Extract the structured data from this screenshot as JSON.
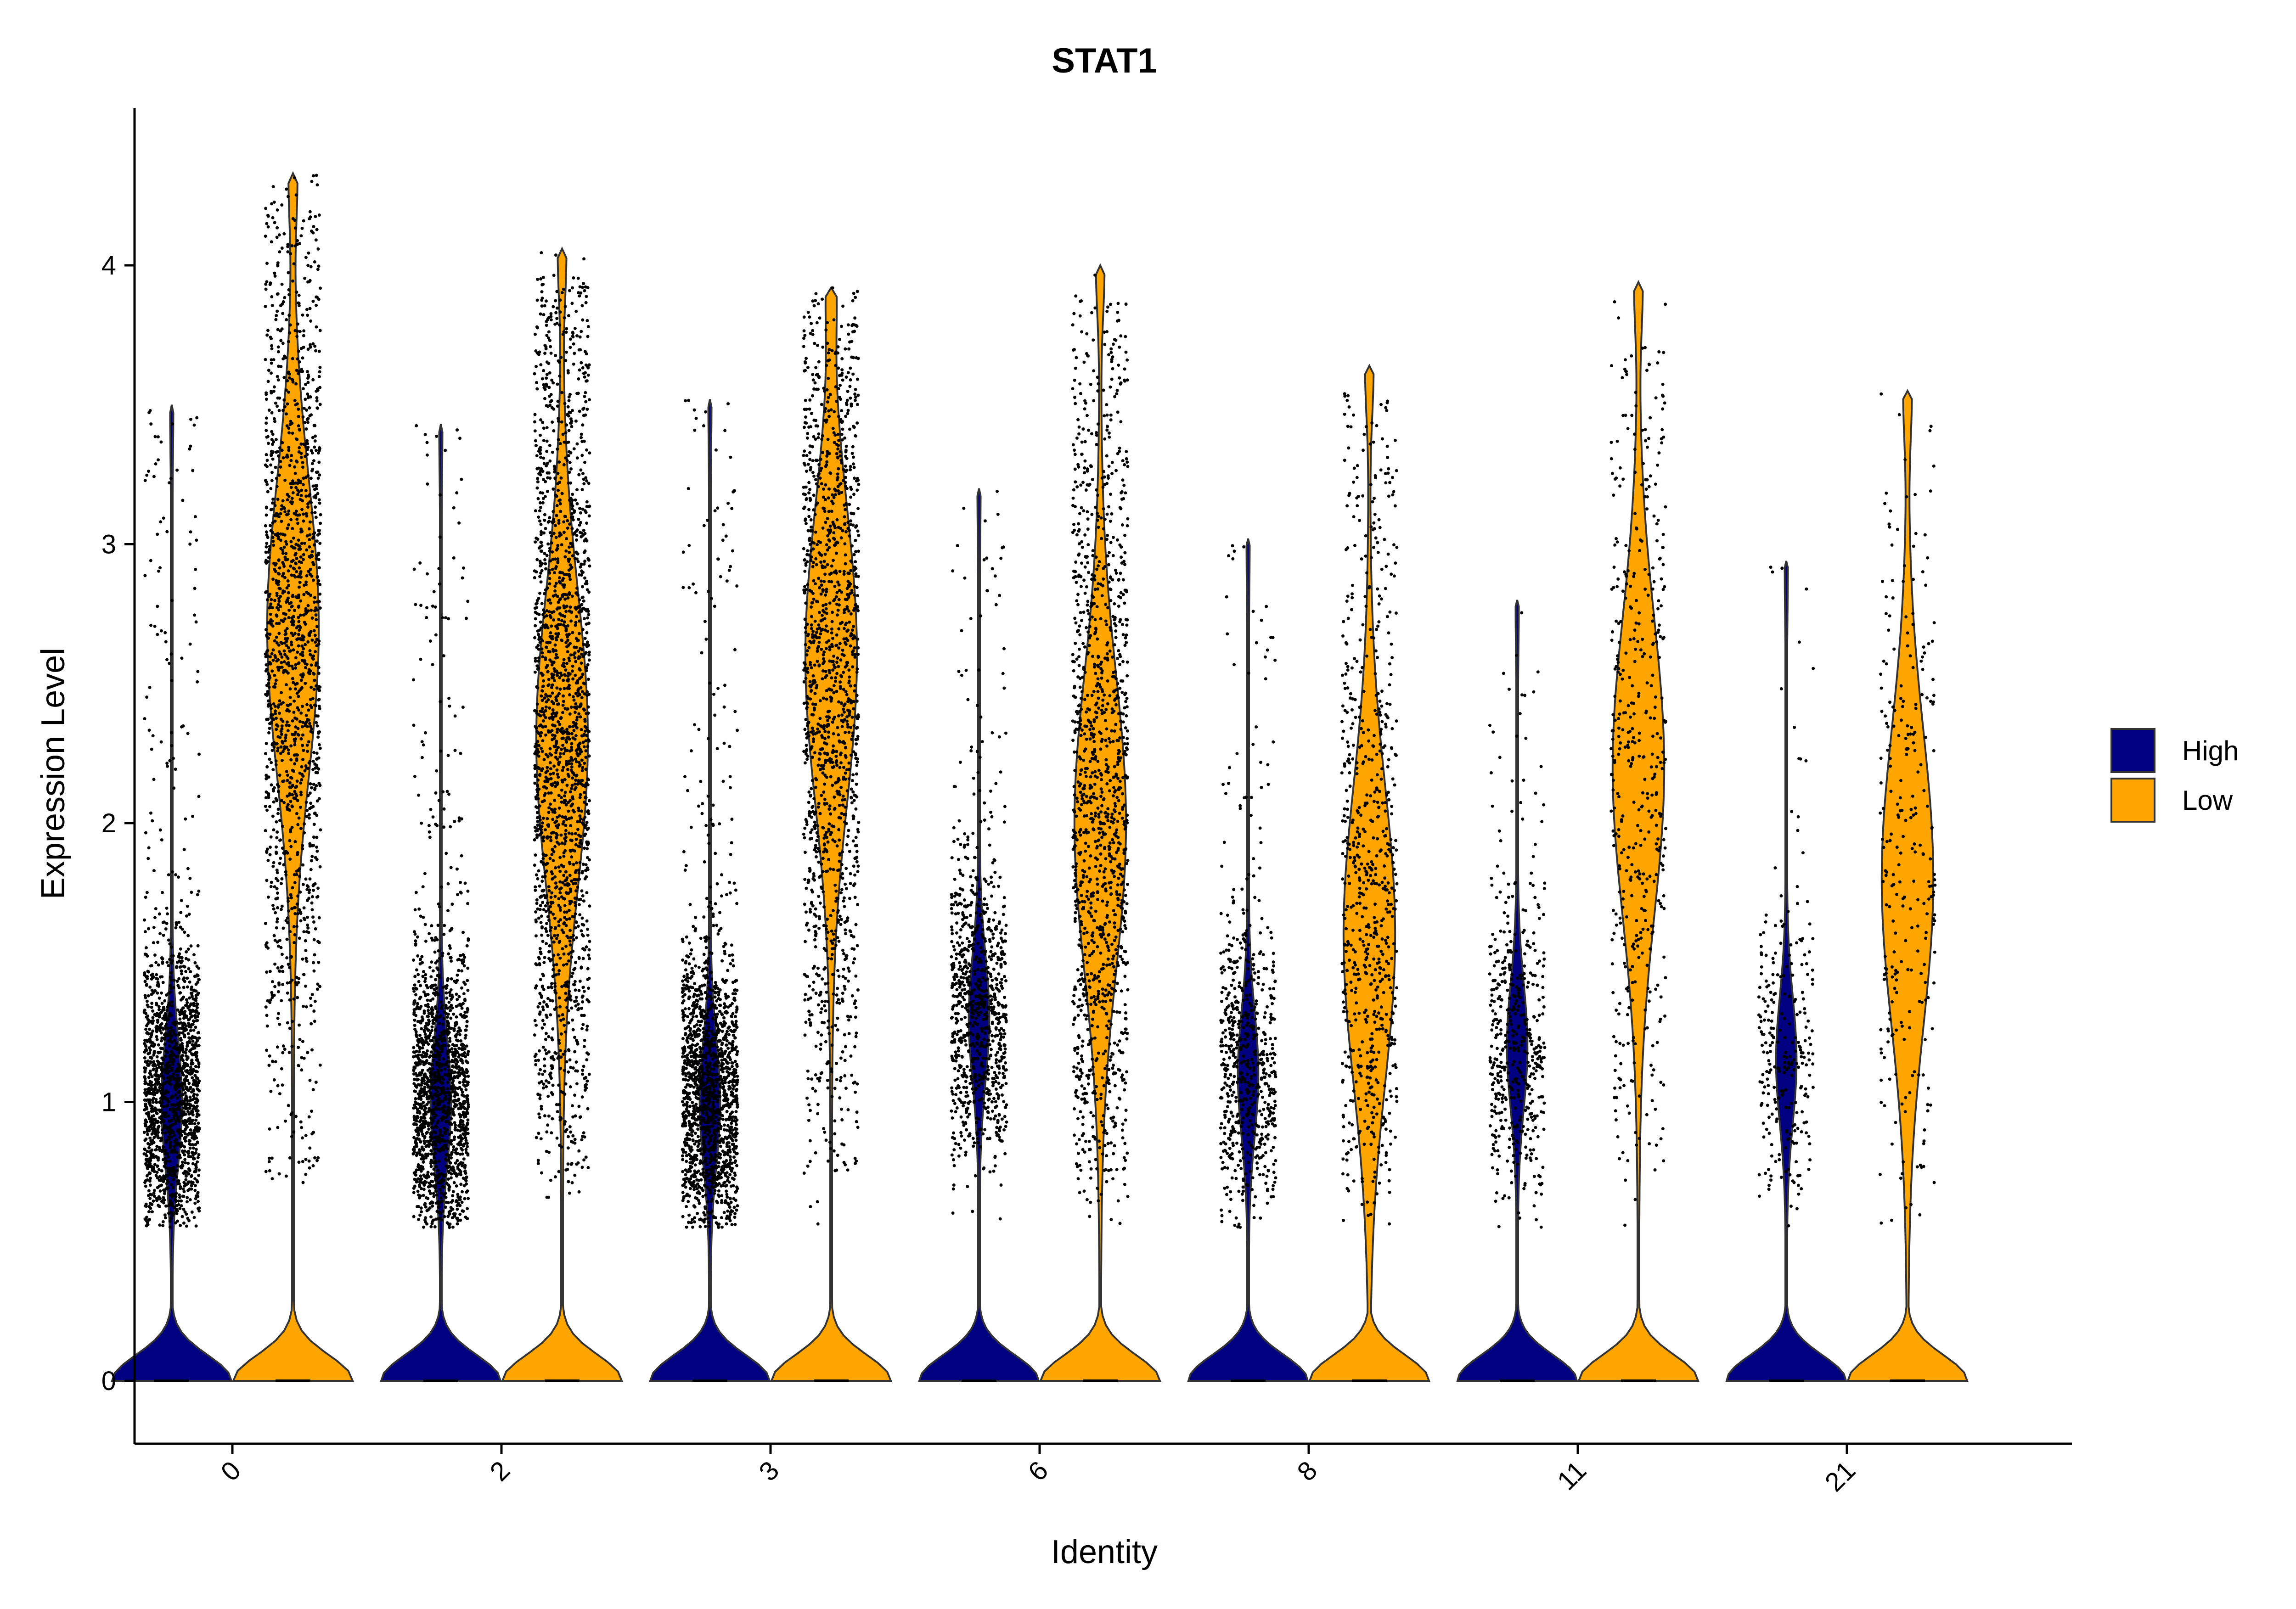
{
  "chart_data": {
    "type": "violin",
    "title": "STAT1",
    "xlabel": "Identity",
    "ylabel": "Expression Level",
    "ylim": [
      -0.22,
      4.55
    ],
    "yticks": [
      0,
      1,
      2,
      3,
      4
    ],
    "categories": [
      "0",
      "2",
      "3",
      "6",
      "8",
      "11",
      "21"
    ],
    "grid": false,
    "legend_position": "right",
    "series": [
      {
        "name": "High",
        "color": "#000080",
        "max_values": [
          3.5,
          3.43,
          3.52,
          3.2,
          3.02,
          2.8,
          2.94
        ],
        "upper_mode": [
          1.0,
          1.0,
          1.0,
          1.3,
          1.1,
          1.2,
          1.15
        ],
        "point_counts": [
          1600,
          1500,
          1600,
          900,
          650,
          480,
          260
        ]
      },
      {
        "name": "Low",
        "color": "#FFA500",
        "max_values": [
          4.33,
          4.06,
          3.92,
          4.0,
          3.64,
          3.94,
          3.55
        ],
        "upper_mode": [
          2.7,
          2.3,
          2.6,
          2.0,
          1.6,
          2.2,
          1.8
        ],
        "point_counts": [
          1500,
          1900,
          1400,
          1300,
          700,
          450,
          260
        ]
      }
    ]
  }
}
